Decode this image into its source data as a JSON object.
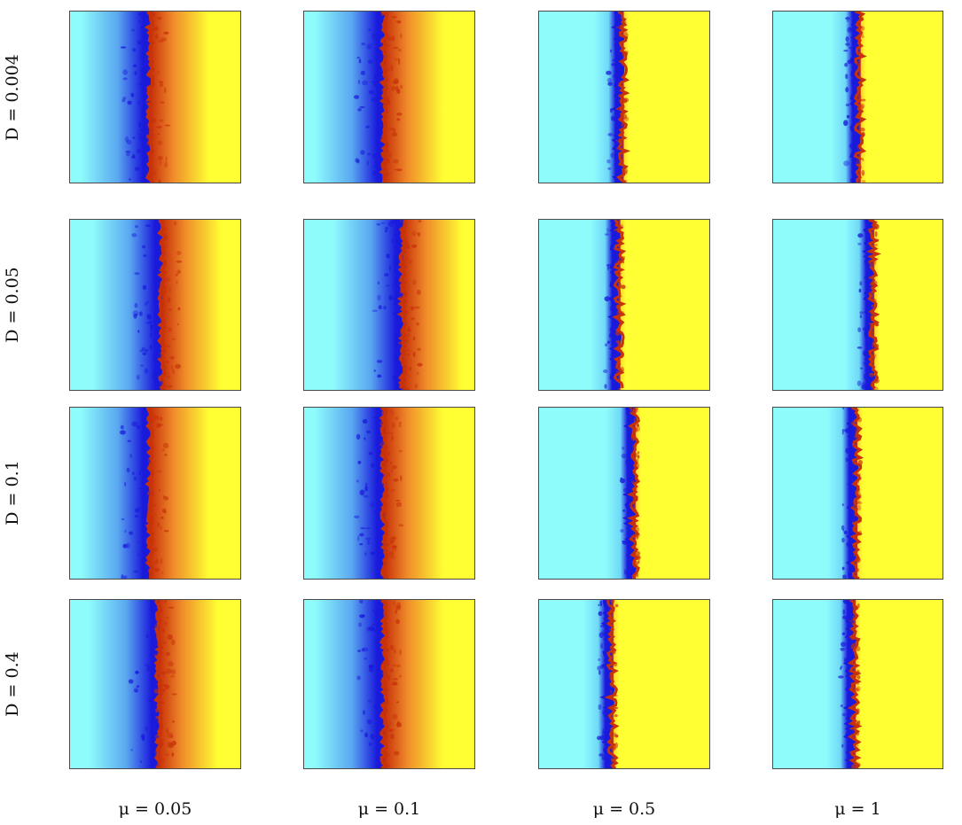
{
  "rows": [
    {
      "label": "D = 0.004"
    },
    {
      "label": "D = 0.05"
    },
    {
      "label": "D = 0.1"
    },
    {
      "label": "D = 0.4"
    }
  ],
  "columns": [
    {
      "label": "μ = 0.05"
    },
    {
      "label": "μ = 0.1"
    },
    {
      "label": "μ = 0.5"
    },
    {
      "label": "μ = 1"
    }
  ],
  "colors": {
    "left_domain": "#8ffcfc",
    "interface_left": "#1a1adc",
    "interface_right": "#c8320a",
    "right_domain": "#ffff33",
    "frame": "#4a4a4a"
  },
  "panels": [
    [
      {
        "interface_fraction": 0.46,
        "spread": "wide"
      },
      {
        "interface_fraction": 0.46,
        "spread": "wide"
      },
      {
        "interface_fraction": 0.48,
        "spread": "narrow"
      },
      {
        "interface_fraction": 0.5,
        "spread": "narrow"
      }
    ],
    [
      {
        "interface_fraction": 0.53,
        "spread": "wide"
      },
      {
        "interface_fraction": 0.57,
        "spread": "wide"
      },
      {
        "interface_fraction": 0.46,
        "spread": "narrow"
      },
      {
        "interface_fraction": 0.58,
        "spread": "narrow"
      }
    ],
    [
      {
        "interface_fraction": 0.46,
        "spread": "wide"
      },
      {
        "interface_fraction": 0.46,
        "spread": "wide"
      },
      {
        "interface_fraction": 0.55,
        "spread": "narrow"
      },
      {
        "interface_fraction": 0.48,
        "spread": "narrow"
      }
    ],
    [
      {
        "interface_fraction": 0.51,
        "spread": "wide"
      },
      {
        "interface_fraction": 0.46,
        "spread": "wide"
      },
      {
        "interface_fraction": 0.42,
        "spread": "narrow"
      },
      {
        "interface_fraction": 0.47,
        "spread": "narrow"
      }
    ]
  ]
}
